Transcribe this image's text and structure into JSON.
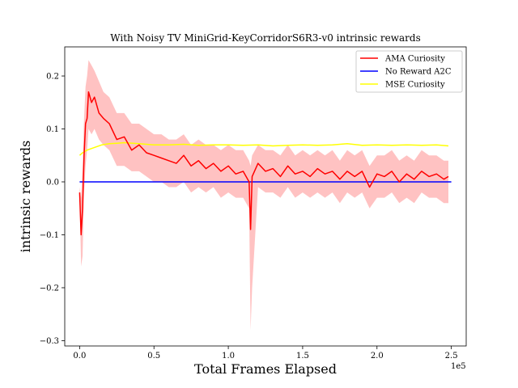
{
  "chart_data": {
    "type": "line",
    "title": "With Noisy TV MiniGrid-KeyCorridorS6R3-v0 intrinsic rewards",
    "xlabel": "Total Frames Elapsed",
    "ylabel": "intrinsic rewards",
    "x_scale_label": "1e5",
    "xlim": [
      -0.1,
      2.6
    ],
    "ylim": [
      -0.31,
      0.255
    ],
    "x_ticks": [
      0.0,
      0.5,
      1.0,
      1.5,
      2.0,
      2.5
    ],
    "x_tick_labels": [
      "0.0",
      "0.5",
      "1.0",
      "1.5",
      "2.0",
      "2.5"
    ],
    "y_ticks": [
      -0.3,
      -0.2,
      -0.1,
      0.0,
      0.1,
      0.2
    ],
    "y_tick_labels": [
      "−0.3",
      "−0.2",
      "−0.1",
      "0.0",
      "0.1",
      "0.2"
    ],
    "legend_position": "top-right",
    "grid": false,
    "series": [
      {
        "name": "AMA Curiosity",
        "color": "#ff0000",
        "band_color": "#ffbbbb",
        "x": [
          0.0,
          0.01,
          0.02,
          0.03,
          0.04,
          0.05,
          0.06,
          0.08,
          0.1,
          0.13,
          0.16,
          0.2,
          0.25,
          0.3,
          0.35,
          0.4,
          0.45,
          0.5,
          0.55,
          0.6,
          0.65,
          0.7,
          0.75,
          0.8,
          0.85,
          0.9,
          0.95,
          1.0,
          1.05,
          1.1,
          1.14,
          1.15,
          1.16,
          1.2,
          1.25,
          1.3,
          1.35,
          1.4,
          1.45,
          1.5,
          1.55,
          1.6,
          1.65,
          1.7,
          1.75,
          1.8,
          1.85,
          1.9,
          1.95,
          2.0,
          2.05,
          2.1,
          2.15,
          2.2,
          2.25,
          2.3,
          2.35,
          2.4,
          2.45,
          2.48
        ],
        "values": [
          -0.02,
          -0.1,
          -0.05,
          0.05,
          0.11,
          0.12,
          0.17,
          0.15,
          0.16,
          0.13,
          0.12,
          0.11,
          0.08,
          0.085,
          0.06,
          0.07,
          0.055,
          0.05,
          0.045,
          0.04,
          0.035,
          0.05,
          0.03,
          0.04,
          0.025,
          0.035,
          0.02,
          0.03,
          0.015,
          0.02,
          0.0,
          -0.09,
          0.01,
          0.035,
          0.02,
          0.025,
          0.01,
          0.03,
          0.015,
          0.02,
          0.01,
          0.025,
          0.015,
          0.02,
          0.005,
          0.02,
          0.01,
          0.02,
          -0.01,
          0.015,
          0.01,
          0.02,
          0.0,
          0.015,
          0.005,
          0.02,
          0.01,
          0.015,
          0.005,
          0.01
        ],
        "lower": [
          -0.03,
          -0.16,
          -0.14,
          -0.02,
          0.03,
          0.06,
          0.1,
          0.09,
          0.1,
          0.08,
          0.07,
          0.06,
          0.03,
          0.03,
          0.02,
          0.02,
          0.01,
          0.0,
          0.0,
          -0.01,
          -0.01,
          0.0,
          -0.02,
          -0.01,
          -0.02,
          -0.01,
          -0.03,
          -0.02,
          -0.03,
          -0.03,
          -0.05,
          -0.28,
          -0.2,
          -0.01,
          -0.02,
          -0.02,
          -0.03,
          -0.01,
          -0.03,
          -0.02,
          -0.03,
          -0.02,
          -0.03,
          -0.02,
          -0.04,
          -0.02,
          -0.03,
          -0.02,
          -0.05,
          -0.03,
          -0.03,
          -0.02,
          -0.04,
          -0.03,
          -0.04,
          -0.02,
          -0.03,
          -0.03,
          -0.04,
          -0.04
        ],
        "upper": [
          -0.01,
          -0.03,
          0.03,
          0.12,
          0.18,
          0.2,
          0.23,
          0.22,
          0.21,
          0.19,
          0.17,
          0.16,
          0.13,
          0.13,
          0.11,
          0.11,
          0.1,
          0.09,
          0.09,
          0.08,
          0.08,
          0.09,
          0.07,
          0.08,
          0.07,
          0.07,
          0.06,
          0.07,
          0.06,
          0.06,
          0.04,
          0.03,
          0.05,
          0.07,
          0.06,
          0.06,
          0.05,
          0.07,
          0.05,
          0.06,
          0.05,
          0.06,
          0.05,
          0.06,
          0.04,
          0.06,
          0.05,
          0.06,
          0.03,
          0.05,
          0.05,
          0.06,
          0.04,
          0.05,
          0.04,
          0.06,
          0.05,
          0.05,
          0.04,
          0.04
        ]
      },
      {
        "name": "No Reward A2C",
        "color": "#0000ff",
        "x": [
          0.0,
          2.5
        ],
        "values": [
          0.0,
          0.0
        ]
      },
      {
        "name": "MSE Curiosity",
        "color": "#ffff00",
        "x": [
          0.0,
          0.02,
          0.05,
          0.1,
          0.15,
          0.2,
          0.25,
          0.3,
          0.4,
          0.5,
          0.6,
          0.7,
          0.8,
          0.9,
          1.0,
          1.1,
          1.2,
          1.3,
          1.4,
          1.5,
          1.6,
          1.7,
          1.8,
          1.9,
          2.0,
          2.1,
          2.2,
          2.3,
          2.4,
          2.48
        ],
        "values": [
          0.05,
          0.055,
          0.06,
          0.065,
          0.07,
          0.072,
          0.073,
          0.074,
          0.072,
          0.07,
          0.07,
          0.071,
          0.069,
          0.07,
          0.07,
          0.069,
          0.07,
          0.068,
          0.069,
          0.07,
          0.069,
          0.07,
          0.072,
          0.069,
          0.07,
          0.069,
          0.07,
          0.069,
          0.07,
          0.068
        ]
      }
    ]
  }
}
